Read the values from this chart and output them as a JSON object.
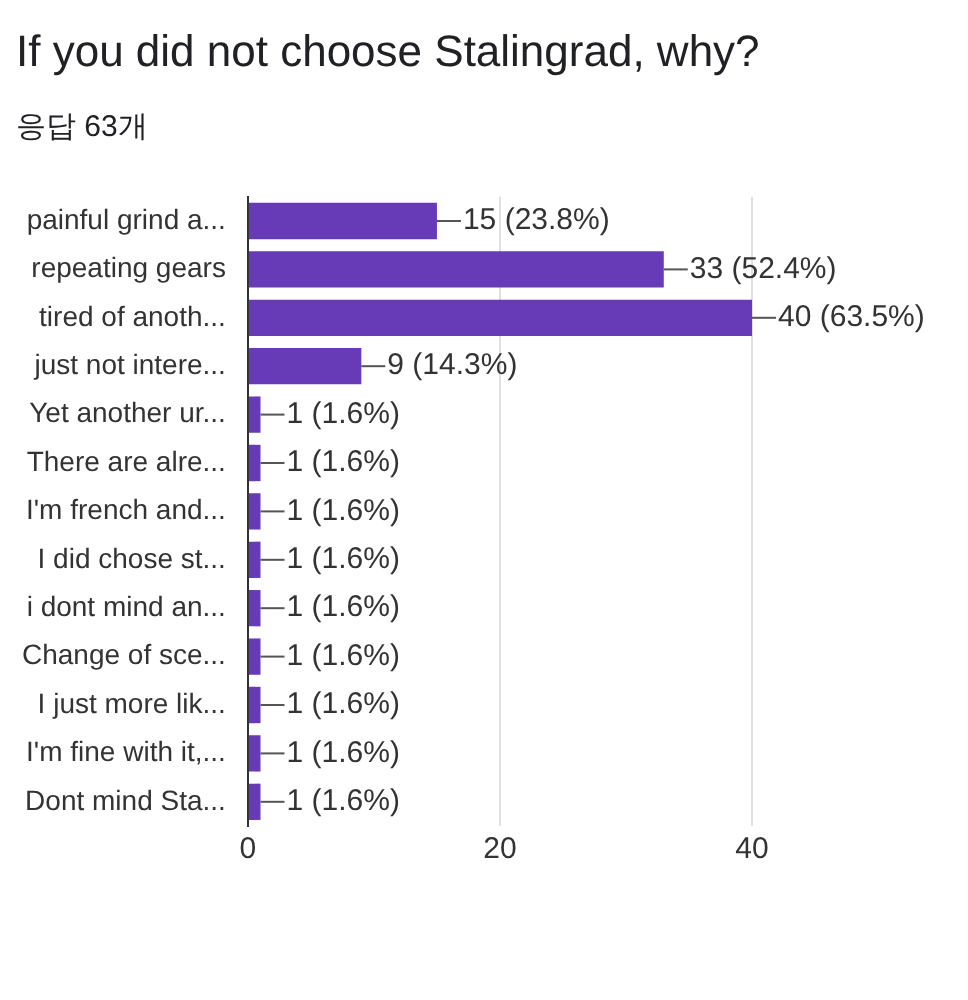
{
  "chart_data": {
    "type": "bar",
    "orientation": "horizontal",
    "title": "If you did not choose Stalingrad, why?",
    "subtitle": "응답 63개",
    "categories": [
      "painful grind a...",
      "repeating gears",
      "tired of anoth...",
      "just not intere...",
      "Yet another ur...",
      "There are alre...",
      "I'm french and...",
      "I did chose st...",
      "i dont mind an...",
      "Change of sce...",
      "I just more lik...",
      "I'm fine with it,...",
      "Dont mind Sta..."
    ],
    "values": [
      15,
      33,
      40,
      9,
      1,
      1,
      1,
      1,
      1,
      1,
      1,
      1,
      1
    ],
    "value_labels": [
      "15 (23.8%)",
      "33 (52.4%)",
      "40 (63.5%)",
      "9 (14.3%)",
      "1 (1.6%)",
      "1 (1.6%)",
      "1 (1.6%)",
      "1 (1.6%)",
      "1 (1.6%)",
      "1 (1.6%)",
      "1 (1.6%)",
      "1 (1.6%)",
      "1 (1.6%)"
    ],
    "color": "#673ab7",
    "xlim": [
      0,
      40
    ],
    "xticks": [
      0,
      20,
      40
    ],
    "grid": "x",
    "legend": false
  }
}
